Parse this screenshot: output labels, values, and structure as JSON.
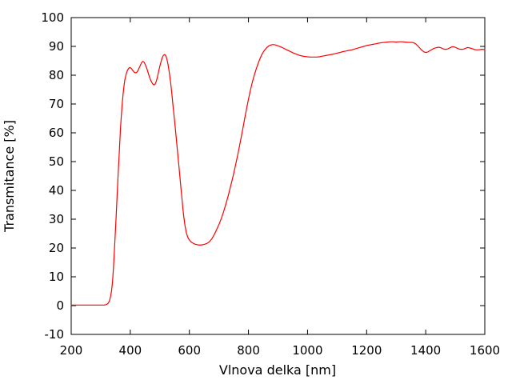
{
  "figure": {
    "background": "#ffffff"
  },
  "chart_data": {
    "type": "line",
    "title": "",
    "xlabel": "Vlnova delka [nm]",
    "ylabel": "Transmitance [%]",
    "xlim": [
      200,
      1600
    ],
    "ylim": [
      -10,
      100
    ],
    "xticks": [
      200,
      400,
      600,
      800,
      1000,
      1200,
      1400,
      1600
    ],
    "yticks": [
      -10,
      0,
      10,
      20,
      30,
      40,
      50,
      60,
      70,
      80,
      90,
      100
    ],
    "grid": false,
    "legend_position": "none",
    "axis_color": "#000000",
    "background_color": "#ffffff",
    "series": [
      {
        "name": "transmittance",
        "color": "#ff0000",
        "points": [
          [
            200,
            0.2
          ],
          [
            240,
            0.2
          ],
          [
            280,
            0.2
          ],
          [
            300,
            0.2
          ],
          [
            312,
            0.2
          ],
          [
            320,
            0.4
          ],
          [
            326,
            0.9
          ],
          [
            330,
            1.8
          ],
          [
            334,
            3.5
          ],
          [
            337,
            5.5
          ],
          [
            340,
            8.5
          ],
          [
            343,
            13
          ],
          [
            346,
            18.5
          ],
          [
            349,
            24.5
          ],
          [
            352,
            30.5
          ],
          [
            355,
            37
          ],
          [
            358,
            43.5
          ],
          [
            361,
            50
          ],
          [
            364,
            56
          ],
          [
            367,
            62
          ],
          [
            370,
            66.5
          ],
          [
            373,
            70.5
          ],
          [
            376,
            73.8
          ],
          [
            379,
            76.5
          ],
          [
            382,
            78.6
          ],
          [
            386,
            80.4
          ],
          [
            390,
            81.6
          ],
          [
            394,
            82.3
          ],
          [
            398,
            82.7
          ],
          [
            402,
            82.5
          ],
          [
            406,
            82
          ],
          [
            410,
            81.4
          ],
          [
            414,
            81
          ],
          [
            418,
            80.8
          ],
          [
            422,
            81
          ],
          [
            426,
            81.6
          ],
          [
            430,
            82.5
          ],
          [
            434,
            83.4
          ],
          [
            438,
            84.3
          ],
          [
            442,
            84.8
          ],
          [
            446,
            84.6
          ],
          [
            450,
            83.9
          ],
          [
            455,
            82.6
          ],
          [
            460,
            81
          ],
          [
            465,
            79.3
          ],
          [
            470,
            78
          ],
          [
            475,
            77.1
          ],
          [
            480,
            76.6
          ],
          [
            484,
            76.9
          ],
          [
            488,
            77.9
          ],
          [
            492,
            79.4
          ],
          [
            496,
            81.3
          ],
          [
            500,
            83.1
          ],
          [
            504,
            84.7
          ],
          [
            508,
            86
          ],
          [
            512,
            86.9
          ],
          [
            516,
            87.2
          ],
          [
            520,
            86.8
          ],
          [
            524,
            85.6
          ],
          [
            528,
            83.6
          ],
          [
            532,
            81
          ],
          [
            536,
            77.9
          ],
          [
            540,
            74.2
          ],
          [
            545,
            69
          ],
          [
            550,
            64
          ],
          [
            555,
            58.8
          ],
          [
            560,
            53.5
          ],
          [
            565,
            48
          ],
          [
            570,
            42.5
          ],
          [
            575,
            37
          ],
          [
            580,
            31.8
          ],
          [
            585,
            27.8
          ],
          [
            590,
            25.2
          ],
          [
            595,
            23.6
          ],
          [
            600,
            22.8
          ],
          [
            606,
            22.1
          ],
          [
            612,
            21.7
          ],
          [
            620,
            21.3
          ],
          [
            628,
            21.1
          ],
          [
            636,
            21.0
          ],
          [
            644,
            21.1
          ],
          [
            652,
            21.3
          ],
          [
            660,
            21.6
          ],
          [
            668,
            22.2
          ],
          [
            676,
            23.2
          ],
          [
            684,
            24.6
          ],
          [
            692,
            26.3
          ],
          [
            700,
            28.1
          ],
          [
            708,
            30.2
          ],
          [
            716,
            32.7
          ],
          [
            724,
            35.4
          ],
          [
            732,
            38.4
          ],
          [
            740,
            41.6
          ],
          [
            748,
            45
          ],
          [
            756,
            48.6
          ],
          [
            764,
            52.5
          ],
          [
            772,
            56.6
          ],
          [
            780,
            60.9
          ],
          [
            788,
            65.3
          ],
          [
            796,
            69.6
          ],
          [
            802,
            72.6
          ],
          [
            808,
            75.4
          ],
          [
            814,
            77.9
          ],
          [
            820,
            80.1
          ],
          [
            826,
            82.1
          ],
          [
            832,
            83.9
          ],
          [
            838,
            85.5
          ],
          [
            844,
            86.9
          ],
          [
            850,
            88
          ],
          [
            856,
            88.9
          ],
          [
            862,
            89.6
          ],
          [
            868,
            90.1
          ],
          [
            874,
            90.4
          ],
          [
            880,
            90.6
          ],
          [
            886,
            90.6
          ],
          [
            892,
            90.5
          ],
          [
            900,
            90.2
          ],
          [
            910,
            89.8
          ],
          [
            920,
            89.3
          ],
          [
            930,
            88.8
          ],
          [
            940,
            88.3
          ],
          [
            950,
            87.8
          ],
          [
            960,
            87.4
          ],
          [
            970,
            87
          ],
          [
            980,
            86.7
          ],
          [
            990,
            86.5
          ],
          [
            1000,
            86.4
          ],
          [
            1010,
            86.3
          ],
          [
            1020,
            86.3
          ],
          [
            1030,
            86.3
          ],
          [
            1040,
            86.4
          ],
          [
            1050,
            86.6
          ],
          [
            1060,
            86.8
          ],
          [
            1070,
            87
          ],
          [
            1080,
            87.2
          ],
          [
            1090,
            87.4
          ],
          [
            1100,
            87.7
          ],
          [
            1110,
            87.9
          ],
          [
            1120,
            88.2
          ],
          [
            1130,
            88.4
          ],
          [
            1140,
            88.6
          ],
          [
            1150,
            88.8
          ],
          [
            1160,
            89.1
          ],
          [
            1170,
            89.4
          ],
          [
            1180,
            89.7
          ],
          [
            1190,
            90
          ],
          [
            1200,
            90.3
          ],
          [
            1210,
            90.5
          ],
          [
            1220,
            90.7
          ],
          [
            1230,
            90.9
          ],
          [
            1240,
            91.1
          ],
          [
            1250,
            91.3
          ],
          [
            1260,
            91.4
          ],
          [
            1270,
            91.5
          ],
          [
            1280,
            91.6
          ],
          [
            1290,
            91.6
          ],
          [
            1300,
            91.5
          ],
          [
            1310,
            91.6
          ],
          [
            1320,
            91.6
          ],
          [
            1330,
            91.5
          ],
          [
            1340,
            91.4
          ],
          [
            1350,
            91.4
          ],
          [
            1358,
            91.3
          ],
          [
            1366,
            90.9
          ],
          [
            1374,
            90.1
          ],
          [
            1382,
            89.2
          ],
          [
            1390,
            88.4
          ],
          [
            1396,
            88
          ],
          [
            1402,
            87.9
          ],
          [
            1408,
            88.1
          ],
          [
            1414,
            88.5
          ],
          [
            1422,
            89
          ],
          [
            1430,
            89.4
          ],
          [
            1438,
            89.6
          ],
          [
            1446,
            89.7
          ],
          [
            1452,
            89.5
          ],
          [
            1458,
            89.2
          ],
          [
            1464,
            89
          ],
          [
            1470,
            89
          ],
          [
            1476,
            89.2
          ],
          [
            1482,
            89.5
          ],
          [
            1488,
            89.8
          ],
          [
            1494,
            89.9
          ],
          [
            1500,
            89.7
          ],
          [
            1506,
            89.4
          ],
          [
            1512,
            89.1
          ],
          [
            1518,
            89
          ],
          [
            1524,
            89
          ],
          [
            1530,
            89.1
          ],
          [
            1536,
            89.4
          ],
          [
            1542,
            89.6
          ],
          [
            1548,
            89.5
          ],
          [
            1554,
            89.3
          ],
          [
            1560,
            89.1
          ],
          [
            1566,
            88.9
          ],
          [
            1572,
            88.8
          ],
          [
            1578,
            88.8
          ],
          [
            1584,
            88.9
          ],
          [
            1590,
            89
          ],
          [
            1600,
            88.9
          ]
        ]
      }
    ]
  }
}
